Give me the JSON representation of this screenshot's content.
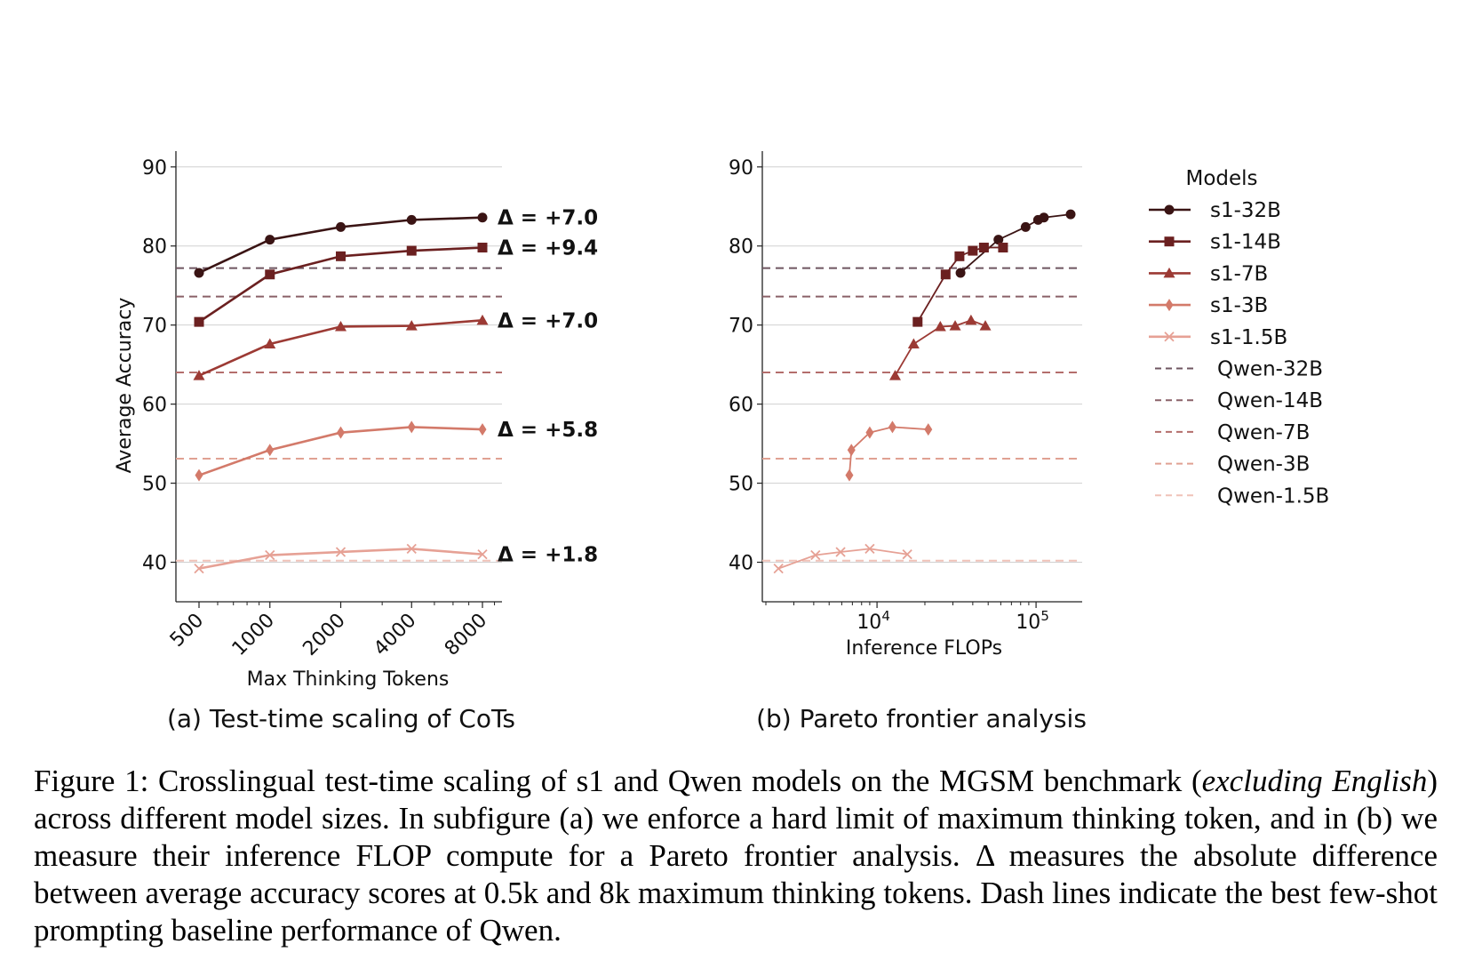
{
  "figure": {
    "subplot_a_title": "(a) Test-time scaling of CoTs",
    "subplot_b_title": "(b) Pareto frontier analysis",
    "legend_title": "Models"
  },
  "caption": {
    "label": "Figure 1:",
    "part1": "Crosslingual test-time scaling of s1 and Qwen models on the MGSM benchmark (",
    "italic": "excluding English",
    "part2": ") across different model sizes. In subfigure (a) we enforce a hard limit of maximum thinking token, and in (b) we measure their inference FLOP compute for a Pareto frontier analysis. Δ measures the absolute difference between average accuracy scores at 0.5k and 8k maximum thinking tokens. Dash lines indicate the best few-shot prompting baseline performance of Qwen."
  },
  "colors": {
    "s1-32B": "#3a1414",
    "s1-14B": "#6b2020",
    "s1-7B": "#9c3a34",
    "s1-3B": "#d37a6a",
    "s1-1.5B": "#e6a195",
    "Qwen-32B": "#6e5560",
    "Qwen-14B": "#8a6168",
    "Qwen-7B": "#b46e6c",
    "Qwen-3B": "#e0a193",
    "Qwen-1.5B": "#f0c2b8"
  },
  "chart_data": [
    {
      "type": "line",
      "xlabel": "Max Thinking Tokens",
      "ylabel": "Average Accuracy",
      "x": [
        500,
        1000,
        2000,
        4000,
        8000
      ],
      "x_tick_labels": [
        "500",
        "1000",
        "2000",
        "4000",
        "8000"
      ],
      "x_scale": "log",
      "ylim": [
        35,
        92
      ],
      "y_ticks": [
        40,
        50,
        60,
        70,
        80,
        90
      ],
      "grid": "horizontal",
      "series": [
        {
          "name": "s1-32B",
          "marker": "circle",
          "values": [
            76.6,
            80.8,
            82.4,
            83.3,
            83.6
          ],
          "delta": "Δ = +7.0"
        },
        {
          "name": "s1-14B",
          "marker": "square",
          "values": [
            70.4,
            76.4,
            78.7,
            79.4,
            79.8
          ],
          "delta": "Δ = +9.4"
        },
        {
          "name": "s1-7B",
          "marker": "triangle",
          "values": [
            63.6,
            67.6,
            69.8,
            69.9,
            70.6
          ],
          "delta": "Δ = +7.0"
        },
        {
          "name": "s1-3B",
          "marker": "diamond",
          "values": [
            51.0,
            54.2,
            56.4,
            57.1,
            56.8
          ],
          "delta": "Δ = +5.8"
        },
        {
          "name": "s1-1.5B",
          "marker": "x",
          "values": [
            39.2,
            40.9,
            41.3,
            41.7,
            41.0
          ],
          "delta": "Δ = +1.8"
        }
      ],
      "baselines": [
        {
          "name": "Qwen-32B",
          "value": 77.2
        },
        {
          "name": "Qwen-14B",
          "value": 73.6
        },
        {
          "name": "Qwen-7B",
          "value": 64.0
        },
        {
          "name": "Qwen-3B",
          "value": 53.1
        },
        {
          "name": "Qwen-1.5B",
          "value": 40.2
        }
      ]
    },
    {
      "type": "line",
      "xlabel": "Inference FLOPs",
      "ylabel": "",
      "x_scale": "log",
      "x_tick_labels": [
        {
          "value": 10000,
          "base": "10",
          "exp": "4"
        },
        {
          "value": 100000,
          "base": "10",
          "exp": "5"
        }
      ],
      "xlim": [
        1900,
        195000
      ],
      "ylim": [
        35,
        92
      ],
      "y_ticks": [
        40,
        50,
        60,
        70,
        80,
        90
      ],
      "grid": "horizontal",
      "legend_position": "right, outside",
      "series": [
        {
          "name": "s1-32B",
          "marker": "circle",
          "points": [
            [
              33500,
              76.6
            ],
            [
              58000,
              80.8
            ],
            [
              86000,
              82.4
            ],
            [
              103000,
              83.3
            ],
            [
              112000,
              83.6
            ],
            [
              165000,
              84.0
            ]
          ]
        },
        {
          "name": "s1-14B",
          "marker": "square",
          "points": [
            [
              18000,
              70.4
            ],
            [
              27000,
              76.4
            ],
            [
              33000,
              78.7
            ],
            [
              40000,
              79.4
            ],
            [
              47000,
              79.8
            ],
            [
              62000,
              79.8
            ]
          ]
        },
        {
          "name": "s1-7B",
          "marker": "triangle",
          "points": [
            [
              13000,
              63.6
            ],
            [
              17000,
              67.6
            ],
            [
              25000,
              69.8
            ],
            [
              31000,
              69.9
            ],
            [
              39000,
              70.6
            ],
            [
              48000,
              69.9
            ]
          ]
        },
        {
          "name": "s1-3B",
          "marker": "diamond",
          "points": [
            [
              6700,
              51.0
            ],
            [
              6900,
              54.2
            ],
            [
              9000,
              56.4
            ],
            [
              12500,
              57.1
            ],
            [
              21000,
              56.8
            ]
          ]
        },
        {
          "name": "s1-1.5B",
          "marker": "x",
          "points": [
            [
              2400,
              39.2
            ],
            [
              4100,
              40.9
            ],
            [
              5900,
              41.3
            ],
            [
              9000,
              41.7
            ],
            [
              15500,
              41.0
            ]
          ]
        }
      ],
      "baselines": [
        {
          "name": "Qwen-32B",
          "value": 77.2
        },
        {
          "name": "Qwen-14B",
          "value": 73.6
        },
        {
          "name": "Qwen-7B",
          "value": 64.0
        },
        {
          "name": "Qwen-3B",
          "value": 53.1
        },
        {
          "name": "Qwen-1.5B",
          "value": 40.2
        }
      ]
    }
  ]
}
